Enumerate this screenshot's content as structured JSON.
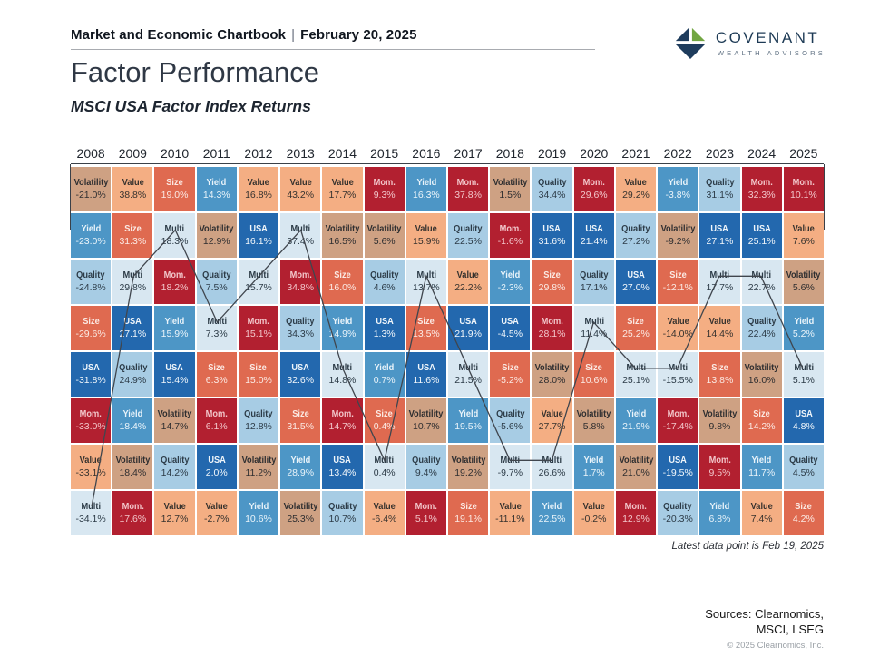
{
  "header": {
    "chartbook": "Market and Economic Chartbook",
    "separator": "|",
    "date": "February 20, 2025"
  },
  "logo": {
    "name": "COVENANT",
    "tagline": "WEALTH ADVISORS"
  },
  "title": "Factor Performance",
  "subtitle": "MSCI USA Factor Index Returns",
  "note": "Latest data point is Feb 19, 2025",
  "sources": {
    "line1": "Sources: Clearnomics,",
    "line2": "MSCI, LSEG",
    "copyright": "© 2025 Clearnomics, Inc."
  },
  "factor_styles": {
    "Volatility": {
      "bg": "#CEA183",
      "text": "#2e2e30"
    },
    "Value": {
      "bg": "#F4AE83",
      "text": "#36322e"
    },
    "Size": {
      "bg": "#DF6A50",
      "text": "#fbeae4"
    },
    "Yield": {
      "bg": "#4D96C6",
      "text": "#eaf4fa"
    },
    "USA": {
      "bg": "#2368AE",
      "text": "#f2f7fb"
    },
    "Mom.": {
      "bg": "#B22030",
      "text": "#f2c6ca"
    },
    "Quality": {
      "bg": "#A7CCE4",
      "text": "#2c3b47"
    },
    "Multi": {
      "bg": "#D8E7F1",
      "text": "#2c3b47"
    }
  },
  "trace_color": "#40464e",
  "chart_data": {
    "type": "table",
    "title": "Factor Performance",
    "subtitle": "MSCI USA Factor Index Returns",
    "highlight_factor": "Multi",
    "legend_position": "none",
    "years": [
      "2008",
      "2009",
      "2010",
      "2011",
      "2012",
      "2013",
      "2014",
      "2015",
      "2016",
      "2017",
      "2018",
      "2019",
      "2020",
      "2021",
      "2022",
      "2023",
      "2024",
      "2025"
    ],
    "columns": [
      {
        "year": "2008",
        "cells": [
          [
            "Volatility",
            "-21.0%"
          ],
          [
            "Yield",
            "-23.0%"
          ],
          [
            "Quality",
            "-24.8%"
          ],
          [
            "Size",
            "-29.6%"
          ],
          [
            "USA",
            "-31.8%"
          ],
          [
            "Mom.",
            "-33.0%"
          ],
          [
            "Value",
            "-33.1%"
          ],
          [
            "Multi",
            "-34.1%"
          ]
        ]
      },
      {
        "year": "2009",
        "cells": [
          [
            "Value",
            "38.8%"
          ],
          [
            "Size",
            "31.3%"
          ],
          [
            "Multi",
            "29.8%"
          ],
          [
            "USA",
            "27.1%"
          ],
          [
            "Quality",
            "24.9%"
          ],
          [
            "Yield",
            "18.4%"
          ],
          [
            "Volatility",
            "18.4%"
          ],
          [
            "Mom.",
            "17.6%"
          ]
        ]
      },
      {
        "year": "2010",
        "cells": [
          [
            "Size",
            "19.0%"
          ],
          [
            "Multi",
            "18.3%"
          ],
          [
            "Mom.",
            "18.2%"
          ],
          [
            "Yield",
            "15.9%"
          ],
          [
            "USA",
            "15.4%"
          ],
          [
            "Volatility",
            "14.7%"
          ],
          [
            "Quality",
            "14.2%"
          ],
          [
            "Value",
            "12.7%"
          ]
        ]
      },
      {
        "year": "2011",
        "cells": [
          [
            "Yield",
            "14.3%"
          ],
          [
            "Volatility",
            "12.9%"
          ],
          [
            "Quality",
            "7.5%"
          ],
          [
            "Multi",
            "7.3%"
          ],
          [
            "Size",
            "6.3%"
          ],
          [
            "Mom.",
            "6.1%"
          ],
          [
            "USA",
            "2.0%"
          ],
          [
            "Value",
            "-2.7%"
          ]
        ]
      },
      {
        "year": "2012",
        "cells": [
          [
            "Value",
            "16.8%"
          ],
          [
            "USA",
            "16.1%"
          ],
          [
            "Multi",
            "15.7%"
          ],
          [
            "Mom.",
            "15.1%"
          ],
          [
            "Size",
            "15.0%"
          ],
          [
            "Quality",
            "12.8%"
          ],
          [
            "Volatility",
            "11.2%"
          ],
          [
            "Yield",
            "10.6%"
          ]
        ]
      },
      {
        "year": "2013",
        "cells": [
          [
            "Value",
            "43.2%"
          ],
          [
            "Multi",
            "37.4%"
          ],
          [
            "Mom.",
            "34.8%"
          ],
          [
            "Quality",
            "34.3%"
          ],
          [
            "USA",
            "32.6%"
          ],
          [
            "Size",
            "31.5%"
          ],
          [
            "Yield",
            "28.9%"
          ],
          [
            "Volatility",
            "25.3%"
          ]
        ]
      },
      {
        "year": "2014",
        "cells": [
          [
            "Value",
            "17.7%"
          ],
          [
            "Volatility",
            "16.5%"
          ],
          [
            "Size",
            "16.0%"
          ],
          [
            "Yield",
            "14.9%"
          ],
          [
            "Multi",
            "14.8%"
          ],
          [
            "Mom.",
            "14.7%"
          ],
          [
            "USA",
            "13.4%"
          ],
          [
            "Quality",
            "10.7%"
          ]
        ]
      },
      {
        "year": "2015",
        "cells": [
          [
            "Mom.",
            "9.3%"
          ],
          [
            "Volatility",
            "5.6%"
          ],
          [
            "Quality",
            "4.6%"
          ],
          [
            "USA",
            "1.3%"
          ],
          [
            "Yield",
            "0.7%"
          ],
          [
            "Size",
            "0.4%"
          ],
          [
            "Multi",
            "0.4%"
          ],
          [
            "Value",
            "-6.4%"
          ]
        ]
      },
      {
        "year": "2016",
        "cells": [
          [
            "Yield",
            "16.3%"
          ],
          [
            "Value",
            "15.9%"
          ],
          [
            "Multi",
            "13.7%"
          ],
          [
            "Size",
            "13.5%"
          ],
          [
            "USA",
            "11.6%"
          ],
          [
            "Volatility",
            "10.7%"
          ],
          [
            "Quality",
            "9.4%"
          ],
          [
            "Mom.",
            "5.1%"
          ]
        ]
      },
      {
        "year": "2017",
        "cells": [
          [
            "Mom.",
            "37.8%"
          ],
          [
            "Quality",
            "22.5%"
          ],
          [
            "Value",
            "22.2%"
          ],
          [
            "USA",
            "21.9%"
          ],
          [
            "Multi",
            "21.5%"
          ],
          [
            "Yield",
            "19.5%"
          ],
          [
            "Volatility",
            "19.2%"
          ],
          [
            "Size",
            "19.1%"
          ]
        ]
      },
      {
        "year": "2018",
        "cells": [
          [
            "Volatility",
            "1.5%"
          ],
          [
            "Mom.",
            "-1.6%"
          ],
          [
            "Yield",
            "-2.3%"
          ],
          [
            "USA",
            "-4.5%"
          ],
          [
            "Size",
            "-5.2%"
          ],
          [
            "Quality",
            "-5.6%"
          ],
          [
            "Multi",
            "-9.7%"
          ],
          [
            "Value",
            "-11.1%"
          ]
        ]
      },
      {
        "year": "2019",
        "cells": [
          [
            "Quality",
            "34.4%"
          ],
          [
            "USA",
            "31.6%"
          ],
          [
            "Size",
            "29.8%"
          ],
          [
            "Mom.",
            "28.1%"
          ],
          [
            "Volatility",
            "28.0%"
          ],
          [
            "Value",
            "27.7%"
          ],
          [
            "Multi",
            "26.6%"
          ],
          [
            "Yield",
            "22.5%"
          ]
        ]
      },
      {
        "year": "2020",
        "cells": [
          [
            "Mom.",
            "29.6%"
          ],
          [
            "USA",
            "21.4%"
          ],
          [
            "Quality",
            "17.1%"
          ],
          [
            "Multi",
            "11.4%"
          ],
          [
            "Size",
            "10.6%"
          ],
          [
            "Volatility",
            "5.8%"
          ],
          [
            "Yield",
            "1.7%"
          ],
          [
            "Value",
            "-0.2%"
          ]
        ]
      },
      {
        "year": "2021",
        "cells": [
          [
            "Value",
            "29.2%"
          ],
          [
            "Quality",
            "27.2%"
          ],
          [
            "USA",
            "27.0%"
          ],
          [
            "Size",
            "25.2%"
          ],
          [
            "Multi",
            "25.1%"
          ],
          [
            "Yield",
            "21.9%"
          ],
          [
            "Volatility",
            "21.0%"
          ],
          [
            "Mom.",
            "12.9%"
          ]
        ]
      },
      {
        "year": "2022",
        "cells": [
          [
            "Yield",
            "-3.8%"
          ],
          [
            "Volatility",
            "-9.2%"
          ],
          [
            "Size",
            "-12.1%"
          ],
          [
            "Value",
            "-14.0%"
          ],
          [
            "Multi",
            "-15.5%"
          ],
          [
            "Mom.",
            "-17.4%"
          ],
          [
            "USA",
            "-19.5%"
          ],
          [
            "Quality",
            "-20.3%"
          ]
        ]
      },
      {
        "year": "2023",
        "cells": [
          [
            "Quality",
            "31.1%"
          ],
          [
            "USA",
            "27.1%"
          ],
          [
            "Multi",
            "17.7%"
          ],
          [
            "Value",
            "14.4%"
          ],
          [
            "Size",
            "13.8%"
          ],
          [
            "Volatility",
            "9.8%"
          ],
          [
            "Mom.",
            "9.5%"
          ],
          [
            "Yield",
            "6.8%"
          ]
        ]
      },
      {
        "year": "2024",
        "cells": [
          [
            "Mom.",
            "32.3%"
          ],
          [
            "USA",
            "25.1%"
          ],
          [
            "Multi",
            "22.7%"
          ],
          [
            "Quality",
            "22.4%"
          ],
          [
            "Volatility",
            "16.0%"
          ],
          [
            "Size",
            "14.2%"
          ],
          [
            "Yield",
            "11.7%"
          ],
          [
            "Value",
            "7.4%"
          ]
        ]
      },
      {
        "year": "2025",
        "cells": [
          [
            "Mom.",
            "10.1%"
          ],
          [
            "Value",
            "7.6%"
          ],
          [
            "Volatility",
            "5.6%"
          ],
          [
            "Yield",
            "5.2%"
          ],
          [
            "Multi",
            "5.1%"
          ],
          [
            "USA",
            "4.8%"
          ],
          [
            "Quality",
            "4.5%"
          ],
          [
            "Size",
            "4.2%"
          ]
        ]
      }
    ]
  }
}
